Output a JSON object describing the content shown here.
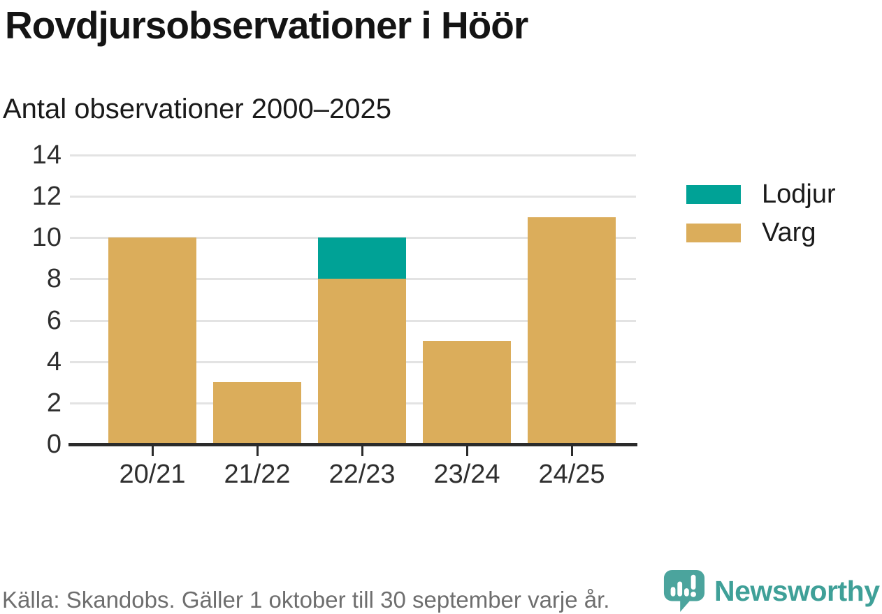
{
  "header": {
    "title": "Rovdjursobservationer i Höör",
    "subtitle": "Antal observationer 2000–2025"
  },
  "legend": [
    {
      "label": "Lodjur",
      "color": "#00a296"
    },
    {
      "label": "Varg",
      "color": "#dbad5b"
    }
  ],
  "footer": {
    "source": "Källa: Skandobs. Gäller 1 oktober till 30 september varje år.",
    "brand": "Newsworthy"
  },
  "colors": {
    "lodjur": "#00a296",
    "varg": "#dbad5b",
    "grid": "#e3e3e3",
    "axis": "#2b2b2b",
    "axis_text": "#2e2e2e",
    "title_text": "#141414",
    "footer_text": "#6e6e6e",
    "brand_text": "#3fa098",
    "brand_icon": "#4ba49d"
  },
  "chart_data": {
    "type": "bar",
    "stacked": true,
    "title": "Rovdjursobservationer i Höör",
    "subtitle": "Antal observationer 2000–2025",
    "categories": [
      "20/21",
      "21/22",
      "22/23",
      "23/24",
      "24/25"
    ],
    "series": [
      {
        "name": "Varg",
        "color": "#dbad5b",
        "values": [
          10,
          3,
          8,
          5,
          11
        ]
      },
      {
        "name": "Lodjur",
        "color": "#00a296",
        "values": [
          0,
          0,
          2,
          0,
          0
        ]
      }
    ],
    "totals": [
      10,
      3,
      10,
      5,
      11
    ],
    "xlabel": "",
    "ylabel": "",
    "ylim": [
      0,
      14
    ],
    "yticks": [
      0,
      2,
      4,
      6,
      8,
      10,
      12,
      14
    ],
    "grid": true,
    "legend_position": "right",
    "source": "Källa: Skandobs. Gäller 1 oktober till 30 september varje år."
  }
}
